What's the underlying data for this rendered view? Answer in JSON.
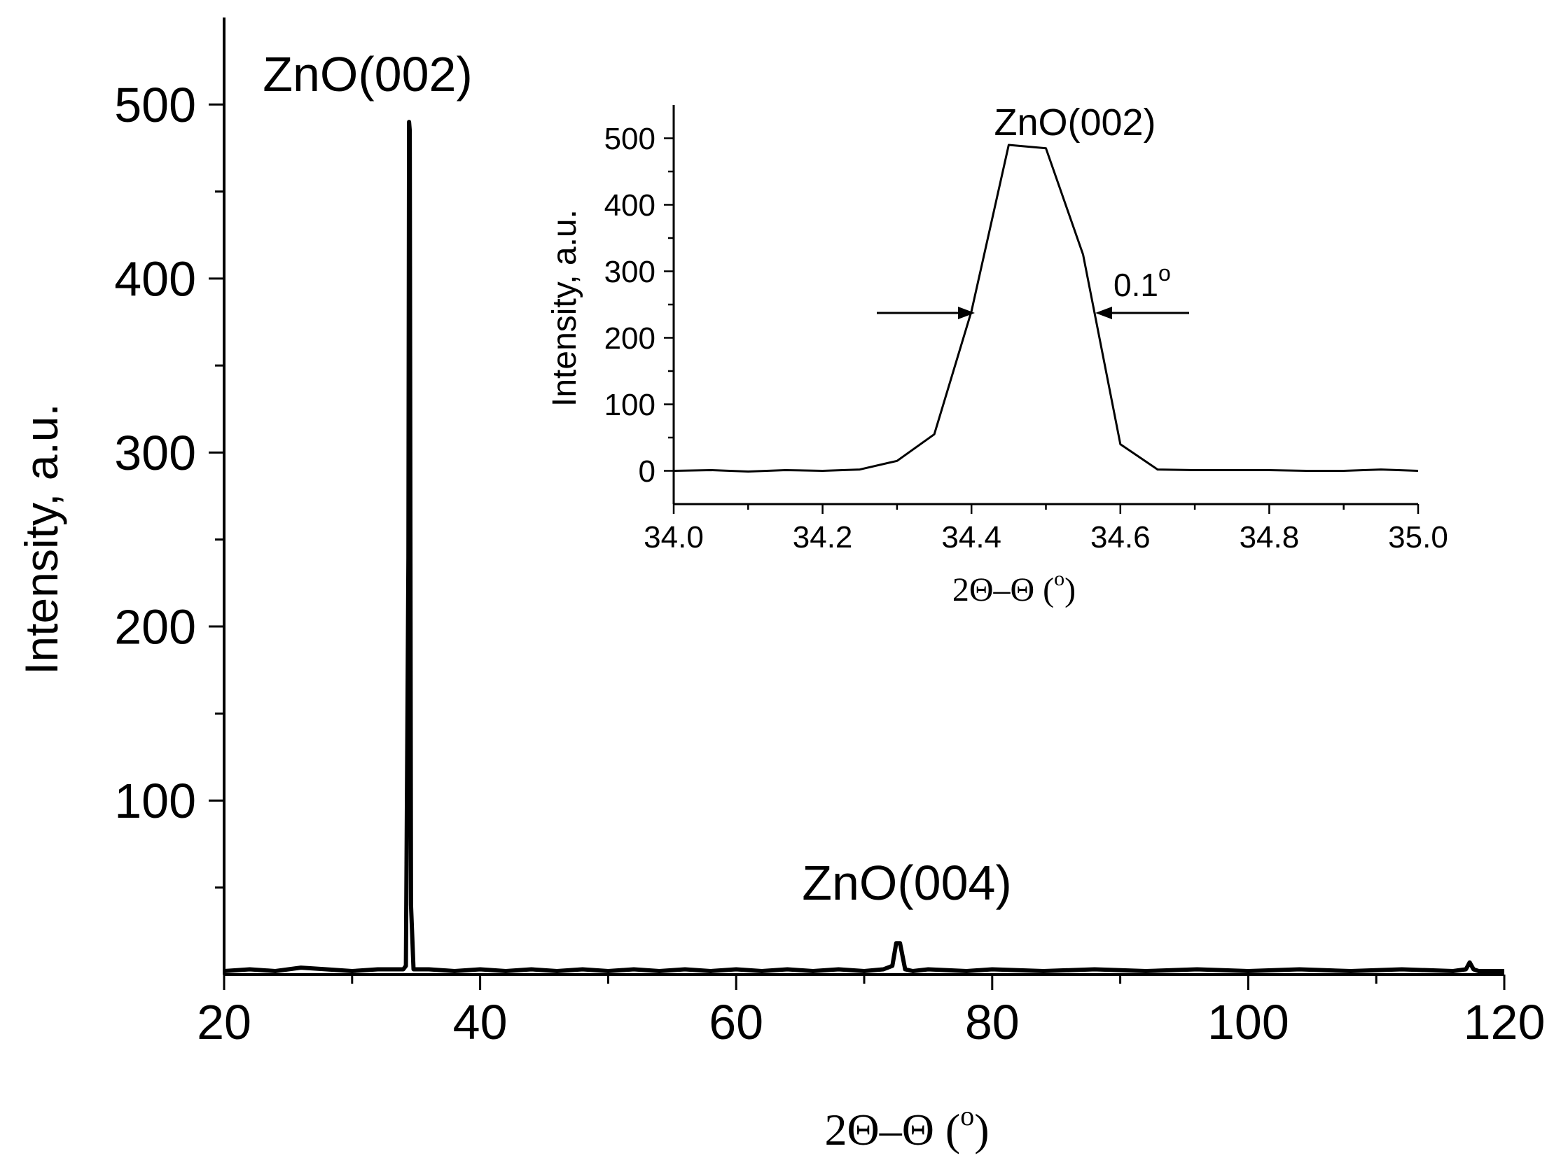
{
  "chart_data": [
    {
      "type": "line",
      "xlabel": "2Θ–Θ (",
      "xlabel_unit": "o",
      "xlabel_close": ")",
      "ylabel": "Intensity, a.u.",
      "xlim": [
        20,
        120
      ],
      "ylim": [
        0,
        550
      ],
      "xticks": [
        "20",
        "40",
        "60",
        "80",
        "100",
        "120"
      ],
      "yticks": [
        "100",
        "200",
        "300",
        "400",
        "500"
      ],
      "grid": false,
      "annotations": [
        "ZnO(002)",
        "ZnO(004)"
      ],
      "series": [
        {
          "x": [
            20,
            22,
            24,
            26,
            28,
            30,
            32,
            33.5,
            34.0,
            34.2,
            34.4,
            34.45,
            34.5,
            34.6,
            34.8,
            35.0,
            36,
            38,
            40,
            42,
            44,
            46,
            48,
            50,
            52,
            54,
            56,
            58,
            60,
            62,
            64,
            66,
            68,
            70,
            71.5,
            72.2,
            72.5,
            72.8,
            73.2,
            73.8,
            75,
            78,
            80,
            84,
            88,
            92,
            96,
            100,
            104,
            108,
            112,
            116,
            117,
            117.3,
            117.6,
            118,
            120
          ],
          "values": [
            2,
            3,
            2,
            4,
            3,
            2,
            3,
            3,
            3,
            5,
            240,
            490,
            485,
            40,
            3,
            3,
            3,
            2,
            3,
            2,
            3,
            2,
            3,
            2,
            3,
            2,
            3,
            2,
            3,
            2,
            3,
            2,
            3,
            2,
            3,
            5,
            18,
            18,
            3,
            2,
            3,
            2,
            3,
            2,
            3,
            2,
            3,
            2,
            3,
            2,
            3,
            2,
            3,
            7,
            3,
            2,
            2
          ]
        }
      ]
    },
    {
      "type": "line",
      "xlabel": "2Θ–Θ (",
      "xlabel_unit": "o",
      "xlabel_close": ")",
      "ylabel": "Intensity, a.u.",
      "xlim": [
        34.0,
        35.0
      ],
      "ylim": [
        -50,
        550
      ],
      "xticks": [
        "34.0",
        "34.2",
        "34.4",
        "34.6",
        "34.8",
        "35.0"
      ],
      "yticks": [
        "0",
        "100",
        "200",
        "300",
        "400",
        "500"
      ],
      "grid": false,
      "annotations": [
        "ZnO(002)",
        "0.1",
        "o"
      ],
      "series": [
        {
          "x": [
            34.0,
            34.05,
            34.1,
            34.15,
            34.2,
            34.25,
            34.3,
            34.35,
            34.4,
            34.45,
            34.5,
            34.55,
            34.6,
            34.65,
            34.7,
            34.75,
            34.8,
            34.85,
            34.9,
            34.95,
            35.0
          ],
          "values": [
            0,
            1,
            -1,
            1,
            0,
            2,
            15,
            55,
            240,
            490,
            485,
            325,
            40,
            2,
            1,
            1,
            1,
            0,
            0,
            2,
            0
          ]
        }
      ]
    }
  ]
}
